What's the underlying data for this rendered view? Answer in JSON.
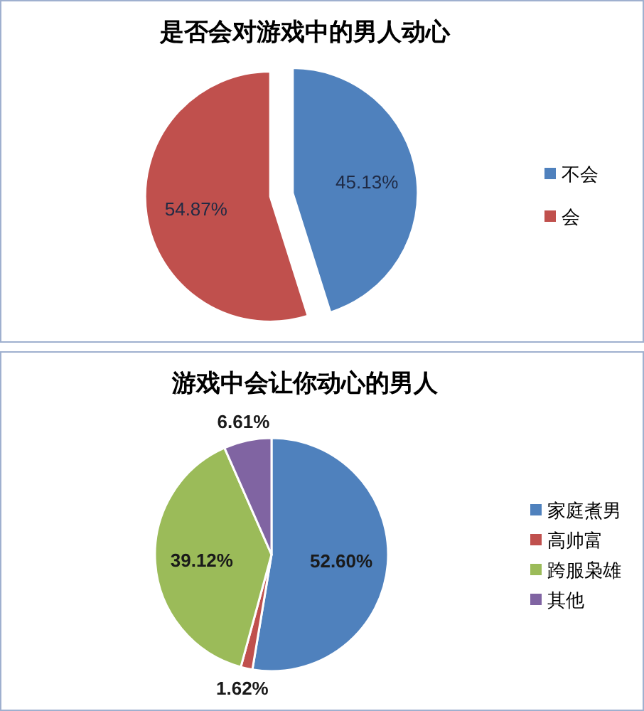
{
  "chart_data": [
    {
      "type": "pie",
      "title": "是否会对游戏中的男人动心",
      "categories": [
        "不会",
        "会"
      ],
      "values": [
        45.13,
        54.87
      ],
      "colors": [
        "#4f81bd",
        "#c0504d"
      ],
      "value_labels": [
        "45.13%",
        "54.87%"
      ],
      "legend": "right"
    },
    {
      "type": "pie",
      "title": "游戏中会让你动心的男人",
      "categories": [
        "家庭煮男",
        "高帅富",
        "跨服枭雄",
        "其他"
      ],
      "values": [
        52.6,
        1.62,
        39.12,
        6.61
      ],
      "colors": [
        "#4f81bd",
        "#c0504d",
        "#9bbb59",
        "#8064a2"
      ],
      "value_labels": [
        "52.60%",
        "1.62%",
        "39.12%",
        "6.61%"
      ],
      "legend": "right"
    }
  ]
}
